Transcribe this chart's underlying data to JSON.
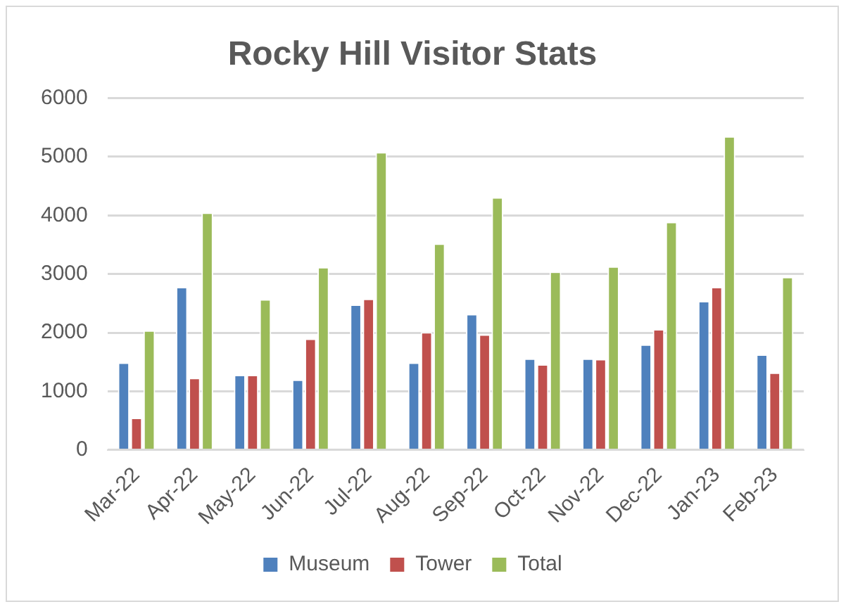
{
  "chart_data": {
    "type": "bar",
    "title": "Rocky Hill Visitor Stats",
    "categories": [
      "Mar-22",
      "Apr-22",
      "May-22",
      "Jun-22",
      "Jul-22",
      "Aug-22",
      "Sep-22",
      "Oct-22",
      "Nov-22",
      "Dec-22",
      "Jan-23",
      "Feb-23"
    ],
    "series": [
      {
        "name": "Museum",
        "color": "#4f81bd",
        "values": [
          1490,
          2780,
          1280,
          1200,
          2480,
          1490,
          2320,
          1560,
          1560,
          1800,
          2540,
          1630
        ]
      },
      {
        "name": "Tower",
        "color": "#c0504d",
        "values": [
          550,
          1230,
          1280,
          1900,
          2580,
          2010,
          1970,
          1460,
          1550,
          2060,
          2780,
          1320
        ]
      },
      {
        "name": "Total",
        "color": "#9bbb59",
        "values": [
          2040,
          4050,
          2570,
          3120,
          5080,
          3520,
          4310,
          3040,
          3130,
          3890,
          5350,
          2950
        ]
      }
    ],
    "ylim": [
      0,
      6000
    ],
    "yticks": [
      0,
      1000,
      2000,
      3000,
      4000,
      5000,
      6000
    ],
    "grid": "y",
    "legend": "bottom"
  }
}
